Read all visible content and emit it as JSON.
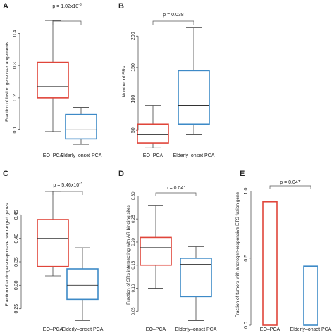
{
  "colors": {
    "eo": "#e0453a",
    "elderly": "#3d8ac7",
    "whisker": "#444444",
    "median": "#333333",
    "axis": "#555555",
    "text": "#222222"
  },
  "chart_data": [
    {
      "panel_label": "A",
      "type": "boxplot",
      "categories": [
        "EO–PCA",
        "Elderly–onset PCA"
      ],
      "ylabel": "Fraction of fusion gene rearrangements",
      "ylim": [
        0.04,
        0.46
      ],
      "yticks": [
        0.1,
        0.2,
        0.3,
        0.4
      ],
      "ytick_labels": [
        "0.1",
        "0.2",
        "0.3",
        "0.4"
      ],
      "pvalue_main": "p = 1.02x10",
      "pvalue_exp": "-3",
      "boxes": [
        {
          "min": 0.095,
          "q1": 0.2,
          "median": 0.235,
          "q3": 0.31,
          "max": 0.44
        },
        {
          "min": 0.055,
          "q1": 0.072,
          "median": 0.102,
          "q3": 0.148,
          "max": 0.17
        }
      ]
    },
    {
      "panel_label": "B",
      "type": "boxplot",
      "categories": [
        "EO–PCA",
        "Elderly–onset PCA"
      ],
      "ylabel": "Number of SRs",
      "ylim": [
        20,
        235
      ],
      "yticks": [
        50,
        100,
        150,
        200
      ],
      "ytick_labels": [
        "50",
        "100",
        "150",
        "200"
      ],
      "pvalue_main": "p = 0.038",
      "pvalue_exp": "",
      "boxes": [
        {
          "min": 22,
          "q1": 30,
          "median": 43,
          "q3": 60,
          "max": 90
        },
        {
          "min": 43,
          "q1": 60,
          "median": 90,
          "q3": 145,
          "max": 213
        }
      ]
    },
    {
      "panel_label": "C",
      "type": "boxplot",
      "categories": [
        "EO–PCA",
        "Elderly–onset PCA"
      ],
      "ylabel": "Fraction of androgen-responsive rearranged genes",
      "ylim": [
        0.215,
        0.515
      ],
      "yticks": [
        0.25,
        0.3,
        0.35,
        0.4,
        0.45
      ],
      "ytick_labels": [
        "0.25",
        "0.30",
        "0.35",
        "0.40",
        "0.45"
      ],
      "pvalue_main": "p = 5.46x10",
      "pvalue_exp": "-3",
      "boxes": [
        {
          "min": 0.32,
          "q1": 0.34,
          "median": 0.4,
          "q3": 0.44,
          "max": 0.5
        },
        {
          "min": 0.225,
          "q1": 0.27,
          "median": 0.3,
          "q3": 0.335,
          "max": 0.38
        }
      ]
    },
    {
      "panel_label": "D",
      "type": "boxplot",
      "categories": [
        "EO–PCA",
        "Elderly–onset PCA"
      ],
      "ylabel": "Fraction of SRs intersecting with AR binding sites",
      "ylim": [
        0.02,
        0.325
      ],
      "yticks": [
        0.05,
        0.1,
        0.15,
        0.2,
        0.25,
        0.3
      ],
      "ytick_labels": [
        "0.05",
        "0.10",
        "0.15",
        "0.20",
        "0.25",
        "0.30"
      ],
      "pvalue_main": "p = 0.041",
      "pvalue_exp": "",
      "boxes": [
        {
          "min": 0.1,
          "q1": 0.15,
          "median": 0.188,
          "q3": 0.21,
          "max": 0.28
        },
        {
          "min": 0.03,
          "q1": 0.082,
          "median": 0.152,
          "q3": 0.165,
          "max": 0.19
        }
      ]
    },
    {
      "panel_label": "E",
      "type": "bar",
      "categories": [
        "EO–PCA",
        "Elderly–onset PCA"
      ],
      "ylabel": "Fraction of tumors with androgen-responsive ETS fusion gene",
      "ylim": [
        0,
        1.05
      ],
      "yticks": [
        0,
        0.5,
        1.0
      ],
      "ytick_labels": [
        "0.0",
        "0.5",
        "1.0"
      ],
      "pvalue_main": "p = 0.047",
      "pvalue_exp": "",
      "values": [
        0.92,
        0.44
      ]
    }
  ]
}
